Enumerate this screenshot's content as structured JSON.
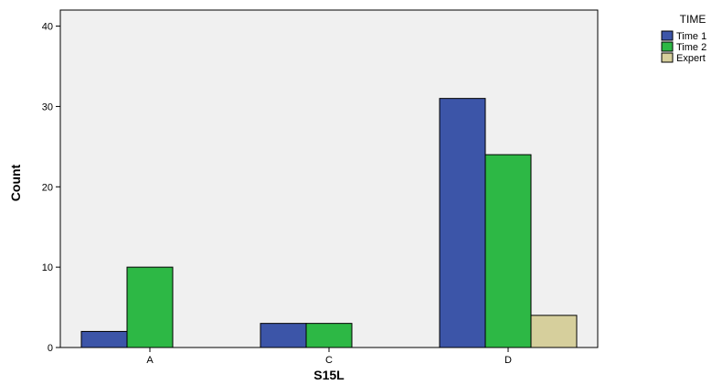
{
  "chart_data": {
    "type": "bar",
    "title": "",
    "xlabel": "S15L",
    "ylabel": "Count",
    "categories": [
      "A",
      "C",
      "D"
    ],
    "ylim": [
      0,
      42
    ],
    "yticks": [
      0,
      10,
      20,
      30,
      40
    ],
    "grid": false,
    "legend": {
      "title": "TIME",
      "placement": "top-right"
    },
    "series": [
      {
        "name": "Time 1",
        "color": "#3c55a8",
        "values": [
          2,
          3,
          31
        ]
      },
      {
        "name": "Time 2",
        "color": "#2db845",
        "values": [
          10,
          3,
          24
        ]
      },
      {
        "name": "Expert",
        "color": "#d6cf9c",
        "values": [
          null,
          null,
          4
        ]
      }
    ]
  }
}
